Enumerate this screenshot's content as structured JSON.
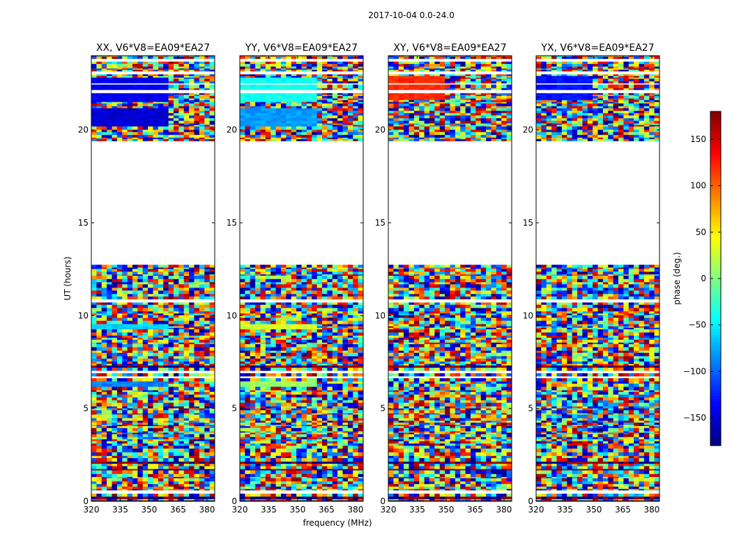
{
  "chart_data": {
    "type": "heatmap",
    "suptitle": "2017-10-04 0.0-24.0",
    "xlabel": "frequency (MHz)",
    "ylabel": "UT (hours)",
    "xlim": [
      320,
      384
    ],
    "ylim": [
      0,
      24
    ],
    "xticks": [
      320,
      335,
      350,
      365,
      380
    ],
    "yticks": [
      0,
      5,
      10,
      15,
      20
    ],
    "flagged_gap_hours": [
      12.8,
      19.4
    ],
    "panels": [
      {
        "title": "XX, V6*V8=EA09*EA27",
        "coherent_bands": [
          {
            "t0": 20.2,
            "t1": 21.2,
            "f_end": 360,
            "phase": -150
          },
          {
            "t0": 21.5,
            "t1": 22.8,
            "f_end": 360,
            "phase": -140
          },
          {
            "t0": 6.1,
            "t1": 6.5,
            "f_end": 362,
            "phase": -90
          },
          {
            "t0": 9.3,
            "t1": 9.6,
            "f_end": 362,
            "phase": -60
          }
        ]
      },
      {
        "title": "YY, V6*V8=EA09*EA27",
        "coherent_bands": [
          {
            "t0": 20.2,
            "t1": 21.2,
            "f_end": 361,
            "phase": -80
          },
          {
            "t0": 21.5,
            "t1": 22.8,
            "f_end": 361,
            "phase": -40
          },
          {
            "t0": 6.1,
            "t1": 6.5,
            "f_end": 360,
            "phase": 10
          },
          {
            "t0": 9.3,
            "t1": 9.6,
            "f_end": 360,
            "phase": 30
          }
        ]
      },
      {
        "title": "XY, V6*V8=EA09*EA27",
        "coherent_bands": [
          {
            "t0": 21.6,
            "t1": 22.9,
            "f_end": 350,
            "phase": 120
          }
        ]
      },
      {
        "title": "YX, V6*V8=EA09*EA27",
        "coherent_bands": [
          {
            "t0": 21.6,
            "t1": 22.9,
            "f_end": 350,
            "phase": -130
          }
        ]
      }
    ],
    "colorbar": {
      "label": "phase (deg.)",
      "range": [
        -180,
        180
      ],
      "ticks": [
        -150,
        -100,
        -50,
        0,
        50,
        100,
        150
      ],
      "colormap": "jet"
    }
  }
}
